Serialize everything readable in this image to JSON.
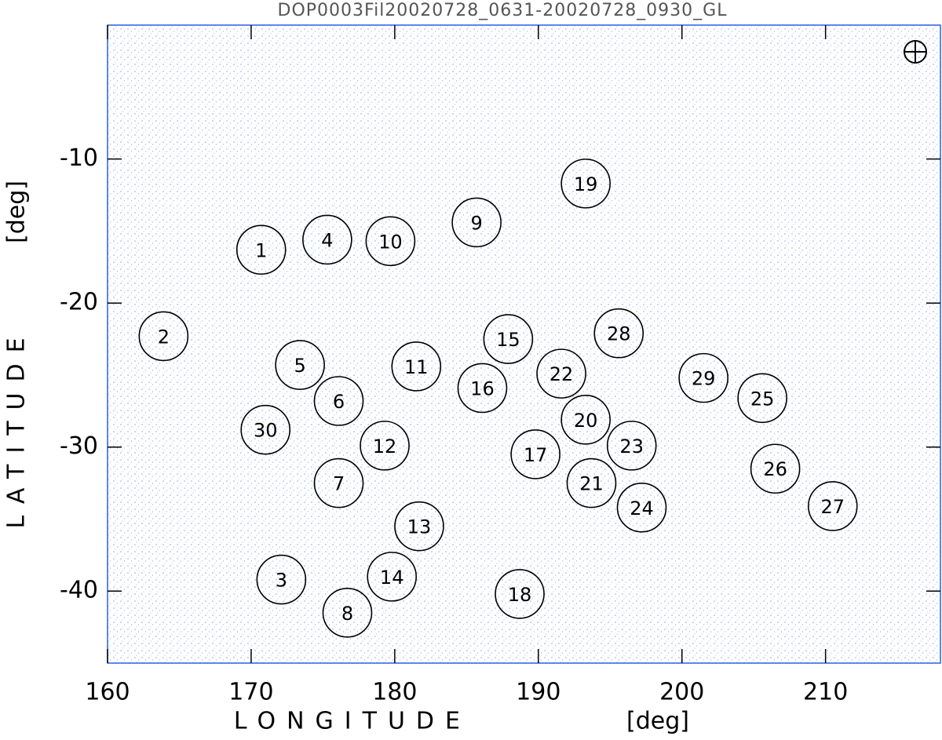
{
  "chart_data": {
    "type": "scatter",
    "title": "DOP0003Fil20020728_0631-20020728_0930_GL",
    "xlabel": "LONGITUDE",
    "xunit": "[deg]",
    "ylabel": "LATITUDE",
    "yunit": "[deg]",
    "xlim": [
      160,
      218
    ],
    "ylim": [
      -45,
      -0.7
    ],
    "xticks": [
      160,
      170,
      180,
      190,
      200,
      210
    ],
    "yticks": [
      -10,
      -20,
      -30,
      -40
    ],
    "grid": false,
    "color": "#000000",
    "points": [
      {
        "label": "1",
        "x": 170.7,
        "y": -16.3
      },
      {
        "label": "2",
        "x": 163.9,
        "y": -22.3
      },
      {
        "label": "3",
        "x": 172.1,
        "y": -39.2
      },
      {
        "label": "4",
        "x": 175.3,
        "y": -15.6
      },
      {
        "label": "5",
        "x": 173.4,
        "y": -24.3
      },
      {
        "label": "6",
        "x": 176.1,
        "y": -26.8
      },
      {
        "label": "7",
        "x": 176.1,
        "y": -32.5
      },
      {
        "label": "8",
        "x": 176.7,
        "y": -41.5
      },
      {
        "label": "9",
        "x": 185.7,
        "y": -14.4
      },
      {
        "label": "10",
        "x": 179.7,
        "y": -15.7
      },
      {
        "label": "11",
        "x": 181.5,
        "y": -24.4
      },
      {
        "label": "12",
        "x": 179.3,
        "y": -29.9
      },
      {
        "label": "13",
        "x": 181.7,
        "y": -35.5
      },
      {
        "label": "14",
        "x": 179.8,
        "y": -39.0
      },
      {
        "label": "15",
        "x": 187.9,
        "y": -22.5
      },
      {
        "label": "16",
        "x": 186.1,
        "y": -25.9
      },
      {
        "label": "17",
        "x": 189.8,
        "y": -30.5
      },
      {
        "label": "18",
        "x": 188.7,
        "y": -40.2
      },
      {
        "label": "19",
        "x": 193.3,
        "y": -11.7
      },
      {
        "label": "20",
        "x": 193.3,
        "y": -28.1
      },
      {
        "label": "21",
        "x": 193.7,
        "y": -32.5
      },
      {
        "label": "22",
        "x": 191.6,
        "y": -24.9
      },
      {
        "label": "23",
        "x": 196.5,
        "y": -29.9
      },
      {
        "label": "24",
        "x": 197.2,
        "y": -34.2
      },
      {
        "label": "25",
        "x": 205.6,
        "y": -26.6
      },
      {
        "label": "26",
        "x": 206.5,
        "y": -31.5
      },
      {
        "label": "27",
        "x": 210.5,
        "y": -34.1
      },
      {
        "label": "28",
        "x": 195.6,
        "y": -22.1
      },
      {
        "label": "29",
        "x": 201.5,
        "y": -25.2
      },
      {
        "label": "30",
        "x": 171.0,
        "y": -28.8
      }
    ]
  }
}
